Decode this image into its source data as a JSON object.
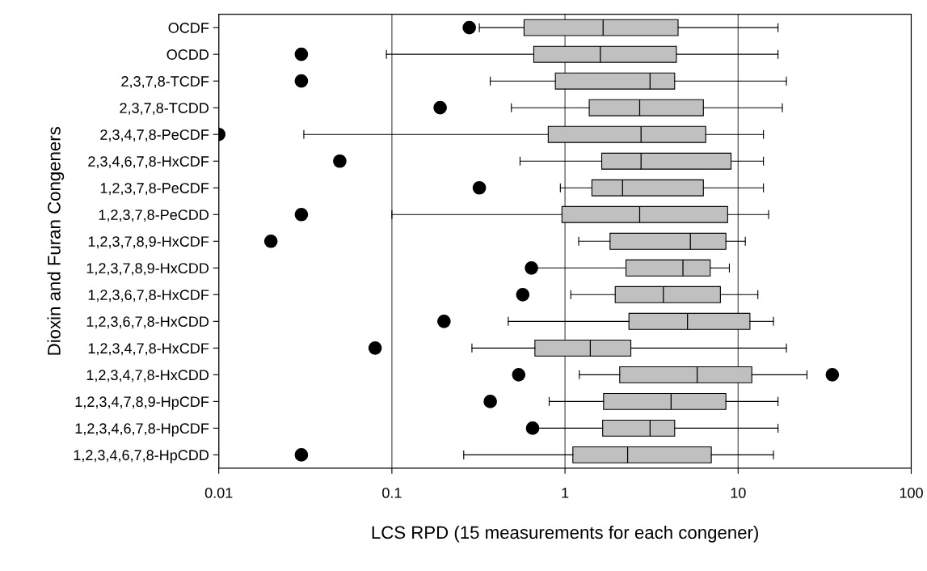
{
  "chart_data": {
    "type": "box",
    "orientation": "horizontal",
    "log": "x",
    "grid": "x",
    "color": "#c0c0c0",
    "xlabel": "LCS RPD (15 measurements for each congener)",
    "ylabel": "Dioxin and Furan Congeners",
    "xlim": [
      0.01,
      100
    ],
    "xticks": [
      0.01,
      0.1,
      1,
      10,
      100
    ],
    "categories": [
      "OCDF",
      "OCDD",
      "2,3,7,8-TCDF",
      "2,3,7,8-TCDD",
      "2,3,4,7,8-PeCDF",
      "2,3,4,6,7,8-HxCDF",
      "1,2,3,7,8-PeCDF",
      "1,2,3,7,8-PeCDD",
      "1,2,3,7,8,9-HxCDF",
      "1,2,3,7,8,9-HxCDD",
      "1,2,3,6,7,8-HxCDF",
      "1,2,3,6,7,8-HxCDD",
      "1,2,3,4,7,8-HxCDF",
      "1,2,3,4,7,8-HxCDD",
      "1,2,3,4,7,8,9-HpCDF",
      "1,2,3,4,6,7,8-HpCDF",
      "1,2,3,4,6,7,8-HpCDD"
    ],
    "boxes": [
      {
        "low": 0.32,
        "q1": 0.58,
        "median": 1.66,
        "q3": 4.5,
        "high": 17,
        "outliers": [
          0.28
        ]
      },
      {
        "low": 0.093,
        "q1": 0.66,
        "median": 1.6,
        "q3": 4.4,
        "high": 17,
        "outliers": [
          0.03
        ]
      },
      {
        "low": 0.37,
        "q1": 0.88,
        "median": 3.1,
        "q3": 4.3,
        "high": 19,
        "outliers": [
          0.03
        ]
      },
      {
        "low": 0.49,
        "q1": 1.38,
        "median": 2.7,
        "q3": 6.3,
        "high": 18,
        "outliers": [
          0.19
        ]
      },
      {
        "low": 0.031,
        "q1": 0.8,
        "median": 2.75,
        "q3": 6.5,
        "high": 14,
        "outliers": [
          0.01
        ]
      },
      {
        "low": 0.55,
        "q1": 1.63,
        "median": 2.75,
        "q3": 9.1,
        "high": 14,
        "outliers": [
          0.05
        ]
      },
      {
        "low": 0.94,
        "q1": 1.43,
        "median": 2.15,
        "q3": 6.3,
        "high": 14,
        "outliers": [
          0.32
        ]
      },
      {
        "low": 0.1,
        "q1": 0.96,
        "median": 2.7,
        "q3": 8.7,
        "high": 15,
        "outliers": [
          0.03
        ]
      },
      {
        "low": 1.2,
        "q1": 1.82,
        "median": 5.3,
        "q3": 8.5,
        "high": 11,
        "outliers": [
          0.02
        ]
      },
      {
        "low": 0.66,
        "q1": 2.25,
        "median": 4.8,
        "q3": 6.9,
        "high": 8.9,
        "outliers": [
          0.64
        ]
      },
      {
        "low": 1.08,
        "q1": 1.95,
        "median": 3.7,
        "q3": 7.9,
        "high": 13,
        "outliers": [
          0.57
        ]
      },
      {
        "low": 0.47,
        "q1": 2.34,
        "median": 5.1,
        "q3": 11.7,
        "high": 16,
        "outliers": [
          0.2
        ]
      },
      {
        "low": 0.29,
        "q1": 0.67,
        "median": 1.4,
        "q3": 2.4,
        "high": 19,
        "outliers": [
          0.08
        ]
      },
      {
        "low": 1.21,
        "q1": 2.07,
        "median": 5.8,
        "q3": 12,
        "high": 25,
        "outliers": [
          0.54,
          35
        ]
      },
      {
        "low": 0.81,
        "q1": 1.67,
        "median": 4.1,
        "q3": 8.5,
        "high": 17,
        "outliers": [
          0.37
        ]
      },
      {
        "low": 0.66,
        "q1": 1.65,
        "median": 3.1,
        "q3": 4.3,
        "high": 17,
        "outliers": [
          0.65
        ]
      },
      {
        "low": 0.26,
        "q1": 1.11,
        "median": 2.3,
        "q3": 7.0,
        "high": 16,
        "outliers": [
          0.03
        ]
      }
    ]
  }
}
